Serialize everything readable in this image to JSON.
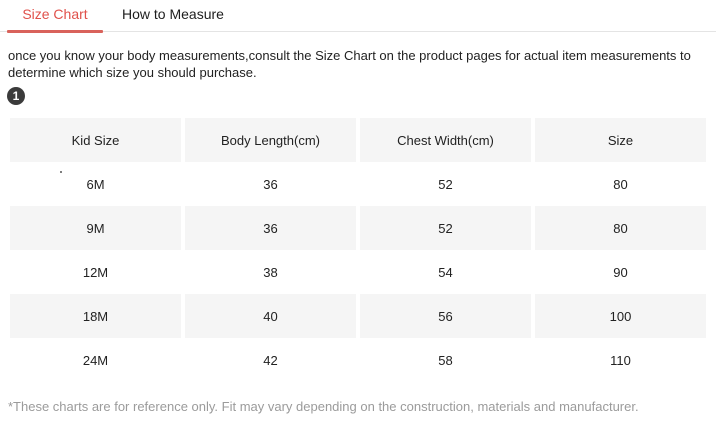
{
  "tabs": {
    "size_chart": "Size Chart",
    "how_to_measure": "How to Measure"
  },
  "intro": "once you know your body measurements,consult the Size Chart on the product pages for actual item measurements to determine which size you should purchase.",
  "step_badge": "1",
  "table": {
    "headers": [
      "Kid Size",
      "Body Length(cm)",
      "Chest Width(cm)",
      "Size"
    ],
    "rows": [
      [
        "6M",
        "36",
        "52",
        "80"
      ],
      [
        "9M",
        "36",
        "52",
        "80"
      ],
      [
        "12M",
        "38",
        "54",
        "90"
      ],
      [
        "18M",
        "40",
        "56",
        "100"
      ],
      [
        "24M",
        "42",
        "58",
        "110"
      ]
    ]
  },
  "footnote": "*These charts are for reference only. Fit may vary depending on the construction, materials and manufacturer.",
  "colors": {
    "accent_text": "#e0514b",
    "accent_underline": "#d9625b",
    "row_stripe": "#f5f5f5",
    "footnote_text": "#9b9b9b",
    "badge_bg": "#3b3b3b"
  }
}
